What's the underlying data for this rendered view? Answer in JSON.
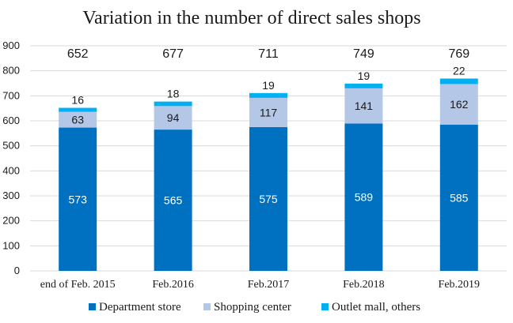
{
  "chart_data": {
    "type": "bar",
    "stacked": true,
    "title": "Variation in the number of direct sales shops",
    "categories": [
      "end of Feb. 2015",
      "Feb.2016",
      "Feb.2017",
      "Feb.2018",
      "Feb.2019"
    ],
    "series": [
      {
        "name": "Department store",
        "color": "#0070c0",
        "label_color": "#ffffff",
        "values": [
          573,
          565,
          575,
          589,
          585
        ]
      },
      {
        "name": "Shopping center",
        "color": "#b4c7e7",
        "label_color": "#1a1a1a",
        "values": [
          63,
          94,
          117,
          141,
          162
        ]
      },
      {
        "name": "Outlet mall, others",
        "color": "#00b0f0",
        "label_color": "#1a1a1a",
        "values": [
          16,
          18,
          19,
          19,
          22
        ]
      }
    ],
    "totals": [
      652,
      677,
      711,
      749,
      769
    ],
    "ylim": [
      0,
      900
    ],
    "yticks": [
      0,
      100,
      200,
      300,
      400,
      500,
      600,
      700,
      800,
      900
    ],
    "grid": true,
    "legend": "bottom"
  }
}
